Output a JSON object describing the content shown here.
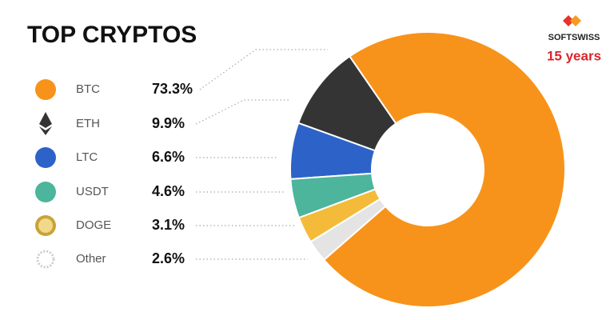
{
  "chart_data": {
    "type": "donut",
    "title": "TOP CRYPTOS",
    "categories": [
      "BTC",
      "ETH",
      "LTC",
      "USDT",
      "DOGE",
      "Other"
    ],
    "values": [
      73.3,
      9.9,
      6.6,
      4.6,
      3.1,
      2.6
    ],
    "value_labels": [
      "73.3%",
      "9.9%",
      "6.6%",
      "4.6%",
      "3.1%",
      "2.6%"
    ],
    "colors": [
      "#f7931a",
      "#343434",
      "#2d63c8",
      "#4cb59b",
      "#f3bb39",
      "#e4e4e4"
    ]
  },
  "brand": {
    "name": "SOFTSWISS",
    "tagline": "15 years"
  }
}
